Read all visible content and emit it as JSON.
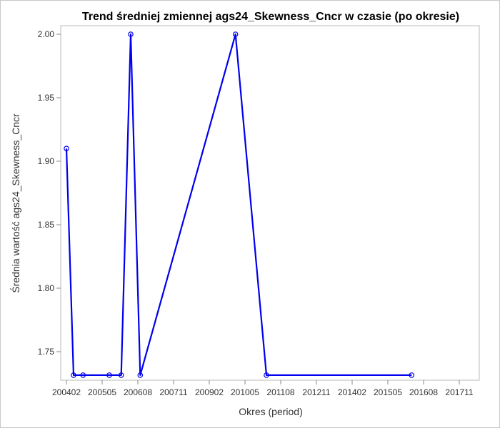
{
  "chart_data": {
    "type": "line",
    "title": "Trend średniej zmiennej ags24_Skewness_Cncr w czasie (po okresie)",
    "xlabel": "Okres (period)",
    "ylabel": "Średnia wartość ags24_Skewness_Cncr",
    "x_ticks": [
      "200402",
      "200505",
      "200608",
      "200711",
      "200902",
      "201005",
      "201108",
      "201211",
      "201402",
      "201505",
      "201608",
      "201711"
    ],
    "y_ticks": [
      "1.75",
      "1.80",
      "1.85",
      "1.90",
      "1.95",
      "2.00"
    ],
    "xlim": [
      "2004-02",
      "2018-07"
    ],
    "ylim": [
      1.728,
      2.005
    ],
    "series": [
      {
        "color": "#0000ee",
        "marker": "open-circle",
        "points": [
          {
            "x": "2004-02",
            "y": 1.91
          },
          {
            "x": "2004-05",
            "y": 1.7315
          },
          {
            "x": "2004-09",
            "y": 1.7315
          },
          {
            "x": "2005-08",
            "y": 1.7315
          },
          {
            "x": "2006-01",
            "y": 1.7315
          },
          {
            "x": "2006-05",
            "y": 2.0
          },
          {
            "x": "2006-09",
            "y": 1.7315
          },
          {
            "x": "2010-01",
            "y": 2.0
          },
          {
            "x": "2011-02",
            "y": 1.7315
          },
          {
            "x": "2016-03",
            "y": 1.7315
          }
        ]
      }
    ]
  }
}
